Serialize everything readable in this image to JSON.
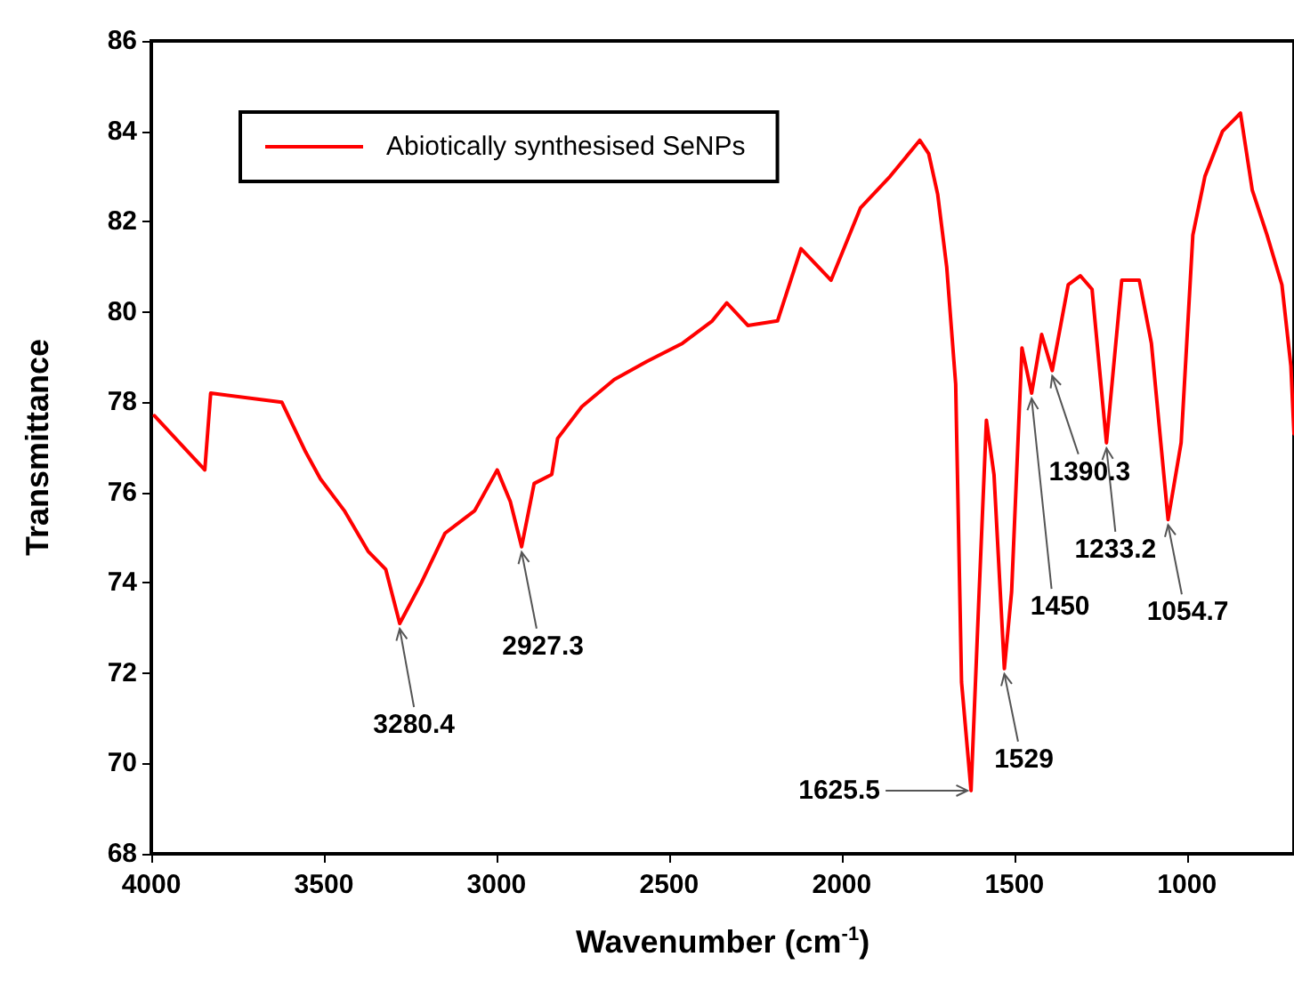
{
  "chart_data": {
    "type": "line",
    "xlabel": "Wavenumber (cm$^{-1}$)",
    "ylabel": "Transmittance",
    "xlim": [
      4000,
      690
    ],
    "xticks": [
      4000,
      3500,
      3000,
      2500,
      2000,
      1500,
      1000
    ],
    "ylim": [
      68,
      86
    ],
    "yticks": [
      68,
      70,
      72,
      74,
      76,
      78,
      80,
      82,
      84,
      86
    ],
    "grid": false,
    "legend": "top left",
    "marker": "none",
    "line_style": "solid",
    "series": [
      {
        "name": "Abiotically synthesised SeNPs",
        "color": "#ff0000",
        "x": [
          3991,
          3845,
          3828,
          3622,
          3553,
          3510,
          3441,
          3372,
          3321,
          3280.4,
          3218,
          3149,
          3063,
          2998,
          2960,
          2927.3,
          2891,
          2840,
          2823,
          2753,
          2659,
          2565,
          2462,
          2375,
          2333,
          2272,
          2186,
          2118,
          2031,
          1946,
          1860,
          1774,
          1748,
          1722,
          1696,
          1670,
          1653,
          1625.5,
          1602,
          1581,
          1559,
          1529,
          1508,
          1478,
          1450,
          1421,
          1390.3,
          1344,
          1309,
          1275,
          1233.2,
          1189,
          1138,
          1103,
          1054.7,
          1017,
          983,
          948,
          897,
          845,
          811,
          768,
          725,
          699,
          690
        ],
        "values": [
          77.7,
          76.5,
          78.2,
          78.0,
          76.9,
          76.3,
          75.6,
          74.7,
          74.3,
          73.1,
          74.0,
          75.1,
          75.6,
          76.5,
          75.8,
          74.8,
          76.2,
          76.4,
          77.2,
          77.9,
          78.5,
          78.9,
          79.3,
          79.8,
          80.2,
          79.7,
          79.8,
          81.4,
          80.7,
          82.3,
          83.0,
          83.8,
          83.5,
          82.6,
          81.0,
          78.4,
          71.8,
          69.4,
          73.8,
          77.6,
          76.4,
          72.1,
          73.8,
          79.2,
          78.2,
          79.5,
          78.7,
          80.6,
          80.8,
          80.5,
          77.1,
          80.7,
          80.7,
          79.3,
          75.4,
          77.1,
          81.7,
          83.0,
          84.0,
          84.4,
          82.7,
          81.7,
          80.6,
          78.8,
          77.3
        ]
      }
    ],
    "annotations": [
      {
        "text": "3280.4",
        "x": 3280.4,
        "y": 73.1
      },
      {
        "text": "2927.3",
        "x": 2927.3,
        "y": 74.8
      },
      {
        "text": "1625.5",
        "x": 1625.5,
        "y": 69.4
      },
      {
        "text": "1529",
        "x": 1529,
        "y": 72.1
      },
      {
        "text": "1450",
        "x": 1450,
        "y": 78.2
      },
      {
        "text": "1390.3",
        "x": 1390.3,
        "y": 78.7
      },
      {
        "text": "1233.2",
        "x": 1233.2,
        "y": 77.1
      },
      {
        "text": "1054.7",
        "x": 1054.7,
        "y": 75.4
      }
    ]
  }
}
